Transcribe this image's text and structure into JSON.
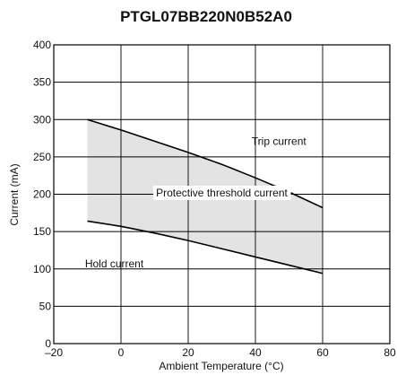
{
  "chart_data": {
    "type": "area",
    "title": "PTGL07BB220N0B52A0",
    "xlabel": "Ambient Temperature (°C)",
    "ylabel": "Current (mA)",
    "xlim": [
      -20,
      80
    ],
    "ylim": [
      0,
      400
    ],
    "xticks": [
      -20,
      0,
      20,
      40,
      60,
      80
    ],
    "yticks": [
      0,
      50,
      100,
      150,
      200,
      250,
      300,
      350,
      400
    ],
    "xtick_labels": [
      "–20",
      "0",
      "20",
      "40",
      "60",
      "80"
    ],
    "ytick_labels": [
      "0",
      "50",
      "100",
      "150",
      "200",
      "250",
      "300",
      "350",
      "400"
    ],
    "grid": true,
    "series": [
      {
        "name": "Trip current",
        "x": [
          -10,
          0,
          10,
          20,
          30,
          40,
          50,
          60
        ],
        "values": [
          300,
          286,
          271,
          256,
          240,
          222,
          203,
          182
        ]
      },
      {
        "name": "Hold current",
        "x": [
          -10,
          0,
          10,
          20,
          30,
          40,
          50,
          60
        ],
        "values": [
          164,
          157,
          148,
          138,
          127,
          116,
          105,
          94
        ]
      }
    ],
    "annotations": [
      {
        "text": "Trip current",
        "x": 47,
        "y": 266
      },
      {
        "text": "Protective threshold current",
        "x": 30,
        "y": 197
      },
      {
        "text": "Hold current",
        "x": -2,
        "y": 102
      }
    ]
  }
}
